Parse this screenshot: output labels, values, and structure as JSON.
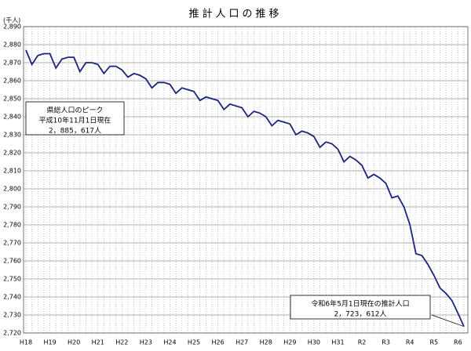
{
  "chart_data": {
    "type": "line",
    "title": "推計人口の推移",
    "y_unit": "(千人)",
    "categories": [
      "H18",
      null,
      null,
      null,
      "H19",
      null,
      null,
      null,
      "H20",
      null,
      null,
      null,
      "H21",
      null,
      null,
      null,
      "H22",
      null,
      null,
      null,
      "H23",
      null,
      null,
      null,
      "H24",
      null,
      null,
      null,
      "H25",
      null,
      null,
      null,
      "H26",
      null,
      null,
      null,
      "H27",
      null,
      null,
      null,
      "H28",
      null,
      null,
      null,
      "H29",
      null,
      null,
      null,
      "H30",
      null,
      null,
      null,
      "H31",
      null,
      null,
      null,
      "R2",
      null,
      null,
      null,
      "R3",
      null,
      null,
      null,
      "R4",
      null,
      null,
      null,
      "R5",
      null,
      null,
      null,
      "R6",
      null
    ],
    "values": [
      2877,
      2869,
      2874,
      2875,
      2875,
      2867,
      2872,
      2873,
      2873,
      2865,
      2870,
      2870,
      2869,
      2864,
      2868,
      2868,
      2866,
      2862,
      2864,
      2863,
      2861,
      2856,
      2859,
      2859,
      2858,
      2853,
      2856,
      2855,
      2854,
      2849,
      2851,
      2850,
      2849,
      2844,
      2847,
      2846,
      2845,
      2840,
      2843,
      2842,
      2840,
      2835,
      2838,
      2837,
      2836,
      2830,
      2832,
      2831,
      2829,
      2823,
      2826,
      2825,
      2822,
      2815,
      2818,
      2816,
      2813,
      2806,
      2808,
      2806,
      2803,
      2795,
      2796,
      2790,
      2780,
      2764,
      2763,
      2758,
      2752,
      2745,
      2742,
      2738,
      2731,
      2723.612
    ],
    "color": "#1a237e",
    "ylim": [
      2720,
      2890
    ],
    "yticks": [
      {
        "value": 2720,
        "label": "2,720"
      },
      {
        "value": 2730,
        "label": "2,730"
      },
      {
        "value": 2740,
        "label": "2,740"
      },
      {
        "value": 2750,
        "label": "2,750"
      },
      {
        "value": 2760,
        "label": "2,760"
      },
      {
        "value": 2770,
        "label": "2,770"
      },
      {
        "value": 2780,
        "label": "2,780"
      },
      {
        "value": 2790,
        "label": "2,790"
      },
      {
        "value": 2800,
        "label": "2,800"
      },
      {
        "value": 2810,
        "label": "2,810"
      },
      {
        "value": 2820,
        "label": "2,820"
      },
      {
        "value": 2830,
        "label": "2,830"
      },
      {
        "value": 2840,
        "label": "2,840"
      },
      {
        "value": 2850,
        "label": "2,850"
      },
      {
        "value": 2860,
        "label": "2,860"
      },
      {
        "value": 2870,
        "label": "2,870"
      },
      {
        "value": 2880,
        "label": "2,880"
      },
      {
        "value": 2890,
        "label": "2,890"
      }
    ],
    "grid": true,
    "annotations": [
      {
        "lines": [
          "県総人口のピーク",
          "平成10年11月1日現在",
          "2，885，617人"
        ]
      },
      {
        "lines": [
          "令和6年5月1日現在の推計人口",
          "2，723，612人"
        ]
      }
    ]
  }
}
